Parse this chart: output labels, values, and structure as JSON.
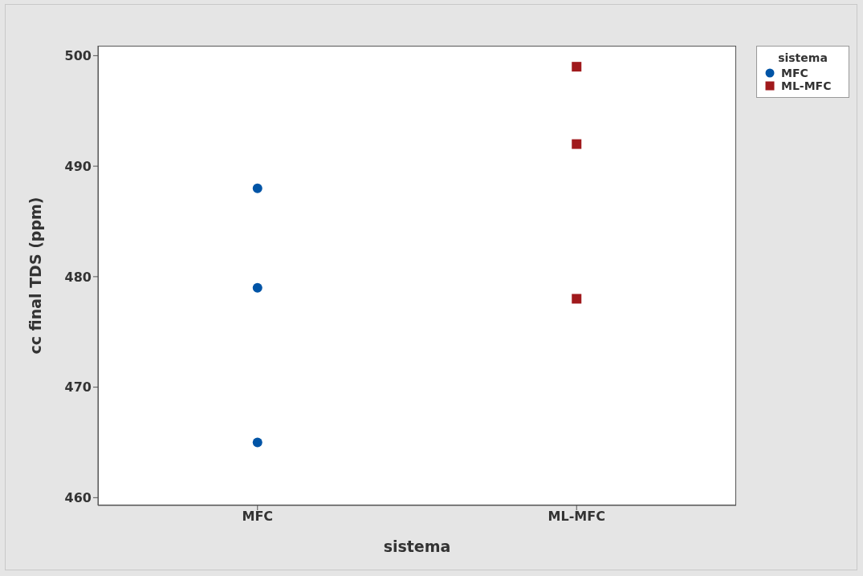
{
  "chart_data": {
    "type": "scatter",
    "xlabel": "sistema",
    "ylabel": "cc final TDS (ppm)",
    "legend_title": "sistema",
    "categories": [
      "MFC",
      "ML-MFC"
    ],
    "series": [
      {
        "name": "MFC",
        "color": "#0054a6",
        "marker": "circle",
        "x": [
          "MFC",
          "MFC",
          "MFC"
        ],
        "values": [
          488,
          479,
          465
        ]
      },
      {
        "name": "ML-MFC",
        "color": "#a0191c",
        "marker": "square",
        "x": [
          "ML-MFC",
          "ML-MFC",
          "ML-MFC"
        ],
        "values": [
          499,
          492,
          478
        ]
      }
    ],
    "ylim": [
      459.3,
      500.9
    ],
    "yticks": [
      460,
      470,
      480,
      490,
      500
    ],
    "legend": "top right"
  }
}
